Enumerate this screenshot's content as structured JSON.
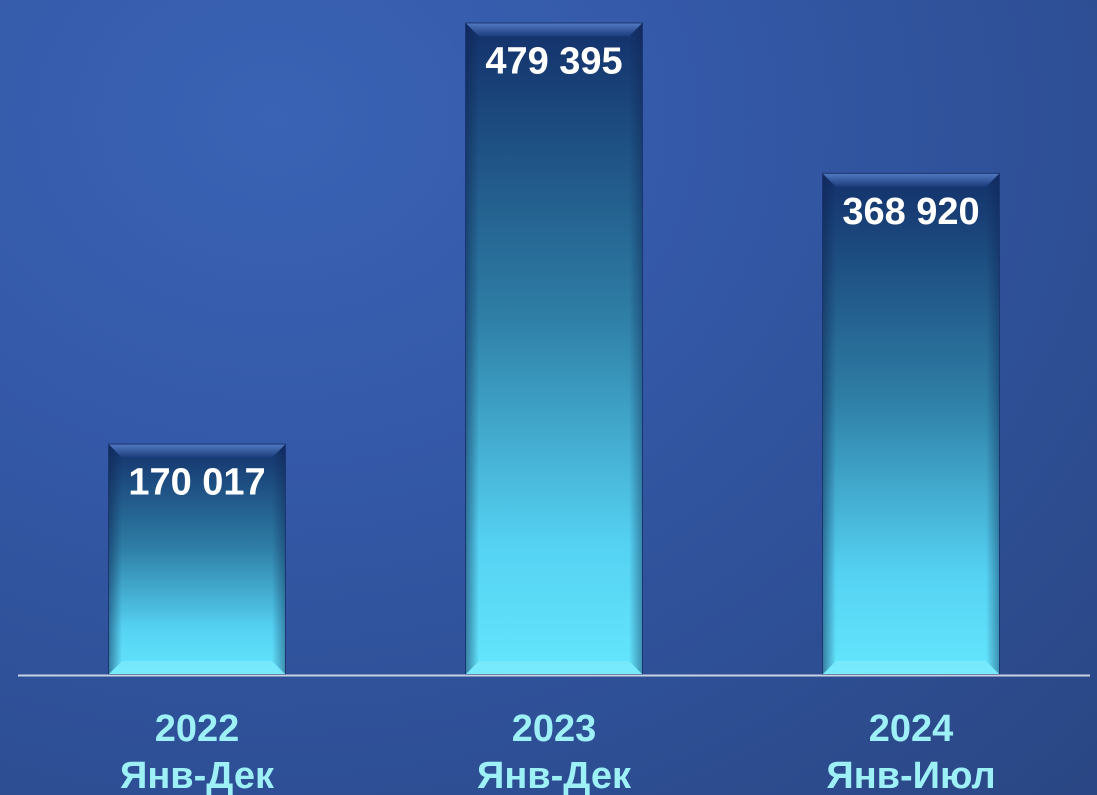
{
  "chart_data": {
    "type": "bar",
    "categories": [
      {
        "year": "2022",
        "period": "Янв-Дек"
      },
      {
        "year": "2023",
        "period": "Янв-Дек"
      },
      {
        "year": "2024",
        "period": "Янв-Июл"
      }
    ],
    "values": [
      170017,
      479395,
      368920
    ],
    "value_labels": [
      "170 017",
      "479 395",
      "368 920"
    ],
    "title": "",
    "xlabel": "",
    "ylabel": "",
    "ylim": [
      0,
      490000
    ],
    "grid": false,
    "legend": "none"
  },
  "colors": {
    "bar_top": "#13306a",
    "bar_mid": "#2e7ea6",
    "bar_bottom": "#5fe0fb",
    "value_text": "#ffffff",
    "category_text": "#9ef0f7",
    "axis_line": "#c9d2e3"
  }
}
